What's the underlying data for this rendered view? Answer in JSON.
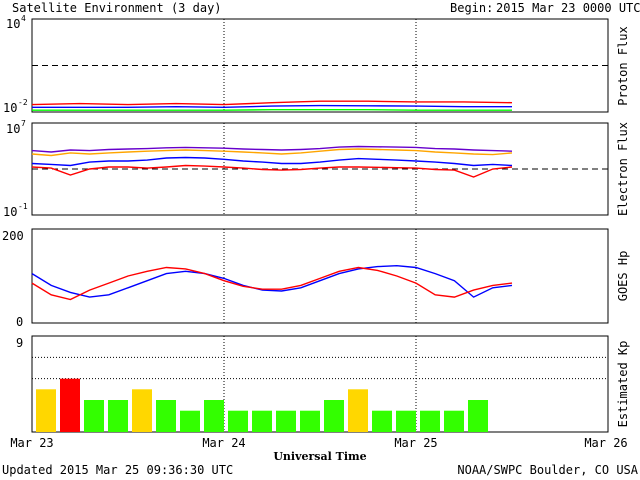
{
  "header": {
    "title": "Satellite Environment (3 day)",
    "begin_label": "Begin:",
    "begin_value": "2015 Mar 23 0000 UTC"
  },
  "footer": {
    "updated": "Updated 2015 Mar 25 09:36:30 UTC",
    "credit": "NOAA/SWPC Boulder, CO USA"
  },
  "x_axis": {
    "title": "Universal Time",
    "ticks": [
      "Mar 23",
      "Mar 24",
      "Mar 25",
      "Mar 26"
    ]
  },
  "colors": {
    "red": "#ff0000",
    "blue": "#0000ff",
    "green": "#00ff00",
    "orange": "#ffa500",
    "purple": "#6600cc",
    "kp_low": "#33ff00",
    "kp_mid": "#ffd700",
    "kp_high": "#ff0000"
  },
  "chart_data": [
    {
      "type": "line",
      "panel": "proton",
      "ylabel": "Proton Flux",
      "ylog": true,
      "ylim": [
        0.01,
        10000
      ],
      "y_tick_labels": [
        {
          "base": "10",
          "exp": "4"
        },
        {
          "base": "10",
          "exp": "-2"
        }
      ],
      "threshold": 10,
      "x": [
        0,
        0.25,
        0.5,
        0.75,
        1.0,
        1.25,
        1.5,
        1.75,
        2.0,
        2.25,
        2.5
      ],
      "series": [
        {
          "color": "red",
          "values": [
            0.03,
            0.035,
            0.03,
            0.035,
            0.03,
            0.04,
            0.05,
            0.05,
            0.045,
            0.045,
            0.04
          ]
        },
        {
          "color": "blue",
          "values": [
            0.02,
            0.02,
            0.02,
            0.022,
            0.02,
            0.024,
            0.026,
            0.025,
            0.024,
            0.022,
            0.022
          ]
        },
        {
          "color": "green",
          "values": [
            0.013,
            0.013,
            0.013,
            0.013,
            0.013,
            0.014,
            0.014,
            0.014,
            0.013,
            0.013,
            0.013
          ]
        }
      ]
    },
    {
      "type": "line",
      "panel": "electron",
      "ylabel": "Electron Flux",
      "ylog": true,
      "ylim": [
        0.1,
        10000000
      ],
      "y_tick_labels": [
        {
          "base": "10",
          "exp": "7"
        },
        {
          "base": "10",
          "exp": "-1"
        }
      ],
      "threshold": 1000,
      "x": [
        0,
        0.1,
        0.2,
        0.3,
        0.4,
        0.5,
        0.6,
        0.7,
        0.8,
        0.9,
        1.0,
        1.1,
        1.2,
        1.3,
        1.4,
        1.5,
        1.6,
        1.7,
        1.8,
        1.9,
        2.0,
        2.1,
        2.2,
        2.3,
        2.4,
        2.5
      ],
      "series": [
        {
          "color": "purple",
          "values": [
            40000,
            30000,
            45000,
            40000,
            50000,
            55000,
            60000,
            70000,
            75000,
            70000,
            65000,
            55000,
            50000,
            45000,
            50000,
            60000,
            80000,
            90000,
            85000,
            80000,
            75000,
            60000,
            55000,
            45000,
            40000,
            35000
          ]
        },
        {
          "color": "orange",
          "values": [
            20000,
            15000,
            25000,
            20000,
            25000,
            30000,
            35000,
            40000,
            45000,
            40000,
            35000,
            30000,
            25000,
            20000,
            25000,
            35000,
            50000,
            55000,
            50000,
            45000,
            40000,
            30000,
            25000,
            20000,
            18000,
            25000
          ]
        },
        {
          "color": "blue",
          "values": [
            3000,
            2500,
            2000,
            4000,
            5000,
            5000,
            6000,
            9000,
            10000,
            9000,
            7000,
            5000,
            4000,
            3000,
            3000,
            4000,
            6000,
            8000,
            7000,
            6000,
            5000,
            4000,
            3000,
            2000,
            2500,
            2000
          ]
        },
        {
          "color": "red",
          "values": [
            1500,
            1200,
            300,
            1000,
            1500,
            1500,
            1200,
            1500,
            2000,
            1800,
            1500,
            1200,
            900,
            800,
            900,
            1200,
            1500,
            1500,
            1400,
            1300,
            1200,
            900,
            800,
            200,
            1000,
            1500
          ]
        }
      ]
    },
    {
      "type": "line",
      "panel": "hp",
      "ylabel": "GOES Hp",
      "ylim": [
        0,
        200
      ],
      "y_tick_labels": [
        "200",
        "0"
      ],
      "x": [
        0,
        0.1,
        0.2,
        0.3,
        0.4,
        0.5,
        0.6,
        0.7,
        0.8,
        0.9,
        1.0,
        1.1,
        1.2,
        1.3,
        1.4,
        1.5,
        1.6,
        1.7,
        1.8,
        1.9,
        2.0,
        2.1,
        2.2,
        2.3,
        2.4,
        2.5
      ],
      "series": [
        {
          "color": "blue",
          "values": [
            105,
            80,
            65,
            55,
            60,
            75,
            90,
            105,
            110,
            105,
            95,
            80,
            70,
            68,
            75,
            90,
            105,
            115,
            120,
            122,
            118,
            105,
            90,
            55,
            75,
            80
          ]
        },
        {
          "color": "red",
          "values": [
            85,
            60,
            50,
            70,
            85,
            100,
            110,
            118,
            115,
            105,
            90,
            78,
            72,
            72,
            80,
            95,
            110,
            118,
            112,
            100,
            85,
            60,
            55,
            70,
            80,
            85
          ]
        }
      ]
    },
    {
      "type": "bar",
      "panel": "kp",
      "ylabel": "Estimated Kp",
      "ylim": [
        0,
        9
      ],
      "y_tick_labels": [
        "9"
      ],
      "bar_width_hours": 3,
      "values": [
        4,
        5,
        3,
        3,
        4,
        3,
        2,
        3,
        2,
        2,
        2,
        2,
        3,
        4,
        2,
        2,
        2,
        2,
        3
      ],
      "levels": [
        "mid",
        "high",
        "low",
        "low",
        "mid",
        "low",
        "low",
        "low",
        "low",
        "low",
        "low",
        "low",
        "low",
        "mid",
        "low",
        "low",
        "low",
        "low",
        "low"
      ]
    }
  ]
}
